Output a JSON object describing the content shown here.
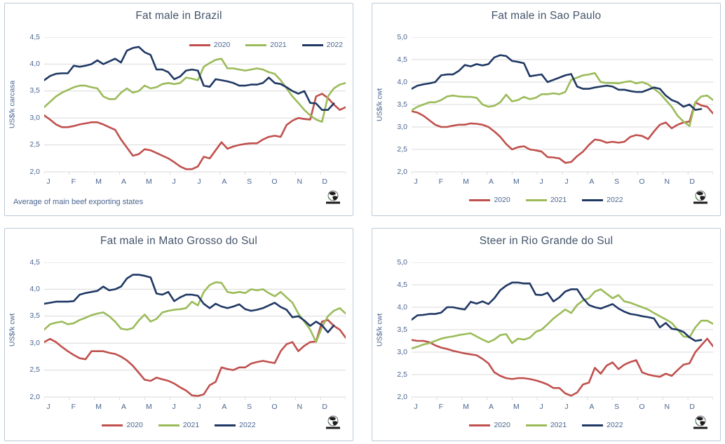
{
  "colors": {
    "title_text": "#44546A",
    "axis_text": "#4a6590",
    "grid": "#d9d9d9",
    "panel_border": "#bccbd8",
    "red_2020": "#C0504D",
    "green_2021": "#9BBB59",
    "navy_2022": "#1F3864"
  },
  "months": [
    "J",
    "F",
    "M",
    "A",
    "M",
    "J",
    "J",
    "A",
    "S",
    "O",
    "N",
    "D"
  ],
  "chart_data": [
    {
      "type": "line",
      "title": "Fat male in Brazil",
      "ylabel": "US$/k carcasa",
      "ylim": [
        2.0,
        4.5
      ],
      "yticks": [
        {
          "label": "4,5",
          "value": 4.5
        },
        {
          "label": "4,0",
          "value": 4.0
        },
        {
          "label": "3,5",
          "value": 3.5
        },
        {
          "label": "3,0",
          "value": 3.0
        },
        {
          "label": "2,5",
          "value": 2.5
        },
        {
          "label": "2,0",
          "value": 2.0
        }
      ],
      "weeks": 52,
      "legend_position": "top-right",
      "footnote": "Average  of main beef exporting states",
      "corner_icon": "globe-logo",
      "series": [
        {
          "name": "2020",
          "color": "#C0504D",
          "values": [
            3.05,
            2.97,
            2.88,
            2.83,
            2.83,
            2.85,
            2.88,
            2.9,
            2.92,
            2.92,
            2.88,
            2.83,
            2.78,
            2.6,
            2.45,
            2.3,
            2.33,
            2.42,
            2.4,
            2.35,
            2.3,
            2.25,
            2.18,
            2.1,
            2.05,
            2.05,
            2.1,
            2.28,
            2.25,
            2.4,
            2.55,
            2.43,
            2.47,
            2.5,
            2.52,
            2.53,
            2.53,
            2.6,
            2.65,
            2.67,
            2.65,
            2.87,
            2.95,
            3.0,
            2.98,
            2.97,
            3.4,
            3.45,
            3.37,
            3.25,
            3.15,
            3.2
          ]
        },
        {
          "name": "2021",
          "color": "#9BBB59",
          "values": [
            3.2,
            3.3,
            3.4,
            3.47,
            3.52,
            3.57,
            3.6,
            3.6,
            3.57,
            3.55,
            3.4,
            3.35,
            3.35,
            3.47,
            3.55,
            3.47,
            3.5,
            3.6,
            3.55,
            3.57,
            3.63,
            3.65,
            3.63,
            3.65,
            3.75,
            3.73,
            3.7,
            3.95,
            4.02,
            4.08,
            4.1,
            3.92,
            3.92,
            3.9,
            3.88,
            3.9,
            3.92,
            3.9,
            3.85,
            3.82,
            3.7,
            3.55,
            3.4,
            3.28,
            3.15,
            3.05,
            2.97,
            2.93,
            3.4,
            3.55,
            3.62,
            3.65
          ]
        },
        {
          "name": "2022",
          "color": "#1F3864",
          "values": [
            3.7,
            3.78,
            3.82,
            3.83,
            3.83,
            3.97,
            3.95,
            3.97,
            4.0,
            4.07,
            4.0,
            4.05,
            4.1,
            4.03,
            4.25,
            4.3,
            4.32,
            4.22,
            4.17,
            3.9,
            3.9,
            3.85,
            3.72,
            3.77,
            3.88,
            3.9,
            3.88,
            3.6,
            3.58,
            3.72,
            3.7,
            3.68,
            3.65,
            3.6,
            3.6,
            3.62,
            3.62,
            3.65,
            3.75,
            3.65,
            3.63,
            3.57,
            3.5,
            3.45,
            3.5,
            3.28,
            3.27,
            3.15,
            3.15,
            3.27
          ]
        }
      ]
    },
    {
      "type": "line",
      "title": "Fat male in Sao Paulo",
      "ylabel": "US$/k cwt",
      "ylim": [
        2.0,
        5.0
      ],
      "yticks": [
        {
          "label": "5,0",
          "value": 5.0
        },
        {
          "label": "4,5",
          "value": 4.5
        },
        {
          "label": "4,0",
          "value": 4.0
        },
        {
          "label": "3,5",
          "value": 3.5
        },
        {
          "label": "3,0",
          "value": 3.0
        },
        {
          "label": "2,5",
          "value": 2.5
        },
        {
          "label": "2,0",
          "value": 2.0
        }
      ],
      "weeks": 52,
      "legend_position": "bottom-center",
      "footnote": "",
      "corner_icon": "globe-logo",
      "series": [
        {
          "name": "2020",
          "color": "#C0504D",
          "values": [
            3.35,
            3.32,
            3.25,
            3.15,
            3.05,
            3.0,
            3.0,
            3.03,
            3.05,
            3.05,
            3.08,
            3.07,
            3.05,
            3.0,
            2.9,
            2.78,
            2.62,
            2.5,
            2.55,
            2.57,
            2.5,
            2.48,
            2.45,
            2.33,
            2.32,
            2.3,
            2.2,
            2.22,
            2.35,
            2.45,
            2.6,
            2.72,
            2.7,
            2.65,
            2.67,
            2.65,
            2.67,
            2.78,
            2.82,
            2.8,
            2.73,
            2.9,
            3.05,
            3.1,
            2.97,
            3.05,
            3.1,
            3.12,
            3.55,
            3.48,
            3.45,
            3.3
          ]
        },
        {
          "name": "2021",
          "color": "#9BBB59",
          "values": [
            3.37,
            3.45,
            3.5,
            3.55,
            3.55,
            3.6,
            3.68,
            3.7,
            3.68,
            3.67,
            3.67,
            3.65,
            3.5,
            3.45,
            3.47,
            3.55,
            3.72,
            3.57,
            3.6,
            3.67,
            3.62,
            3.65,
            3.73,
            3.73,
            3.75,
            3.73,
            3.78,
            4.05,
            4.1,
            4.15,
            4.17,
            4.2,
            4.0,
            3.98,
            3.98,
            3.97,
            4.0,
            4.02,
            3.97,
            4.0,
            3.95,
            3.85,
            3.75,
            3.6,
            3.45,
            3.25,
            3.12,
            3.02,
            3.55,
            3.68,
            3.7,
            3.6
          ]
        },
        {
          "name": "2022",
          "color": "#1F3864",
          "values": [
            3.85,
            3.92,
            3.95,
            3.97,
            4.0,
            4.15,
            4.17,
            4.17,
            4.25,
            4.38,
            4.35,
            4.4,
            4.37,
            4.4,
            4.55,
            4.6,
            4.58,
            4.47,
            4.45,
            4.42,
            4.13,
            4.15,
            4.17,
            4.0,
            4.05,
            4.1,
            4.15,
            4.18,
            3.9,
            3.85,
            3.85,
            3.88,
            3.9,
            3.92,
            3.9,
            3.83,
            3.83,
            3.8,
            3.78,
            3.78,
            3.83,
            3.88,
            3.85,
            3.7,
            3.6,
            3.55,
            3.45,
            3.5,
            3.38,
            3.4
          ]
        }
      ]
    },
    {
      "type": "line",
      "title": "Fat male in Mato Grosso do Sul",
      "ylabel": "US$/k cwt",
      "ylim": [
        2.0,
        4.5
      ],
      "yticks": [
        {
          "label": "4,5",
          "value": 4.5
        },
        {
          "label": "4,0",
          "value": 4.0
        },
        {
          "label": "3,5",
          "value": 3.5
        },
        {
          "label": "3,0",
          "value": 3.0
        },
        {
          "label": "2,5",
          "value": 2.5
        },
        {
          "label": "2,0",
          "value": 2.0
        }
      ],
      "weeks": 52,
      "legend_position": "bottom-center",
      "footnote": "",
      "corner_icon": "globe-logo",
      "series": [
        {
          "name": "2020",
          "color": "#C0504D",
          "values": [
            3.02,
            3.08,
            3.02,
            2.93,
            2.85,
            2.78,
            2.72,
            2.7,
            2.85,
            2.85,
            2.85,
            2.82,
            2.8,
            2.75,
            2.68,
            2.58,
            2.45,
            2.32,
            2.3,
            2.36,
            2.33,
            2.3,
            2.25,
            2.18,
            2.12,
            2.03,
            2.02,
            2.05,
            2.22,
            2.28,
            2.55,
            2.52,
            2.5,
            2.55,
            2.55,
            2.62,
            2.65,
            2.67,
            2.65,
            2.63,
            2.85,
            2.98,
            3.02,
            2.85,
            2.95,
            3.02,
            3.03,
            3.4,
            3.43,
            3.32,
            3.25,
            3.1
          ]
        },
        {
          "name": "2021",
          "color": "#9BBB59",
          "values": [
            3.25,
            3.35,
            3.38,
            3.4,
            3.35,
            3.37,
            3.43,
            3.47,
            3.52,
            3.55,
            3.57,
            3.5,
            3.4,
            3.27,
            3.25,
            3.28,
            3.42,
            3.53,
            3.4,
            3.45,
            3.57,
            3.6,
            3.62,
            3.63,
            3.65,
            3.77,
            3.7,
            3.95,
            4.08,
            4.13,
            4.12,
            3.95,
            3.93,
            3.95,
            3.93,
            4.0,
            3.98,
            4.0,
            3.93,
            3.87,
            3.95,
            3.85,
            3.75,
            3.55,
            3.4,
            3.25,
            3.02,
            3.3,
            3.5,
            3.6,
            3.65,
            3.55
          ]
        },
        {
          "name": "2022",
          "color": "#1F3864",
          "values": [
            3.73,
            3.75,
            3.77,
            3.77,
            3.77,
            3.78,
            3.9,
            3.93,
            3.95,
            3.97,
            4.05,
            3.98,
            4.0,
            4.05,
            4.2,
            4.27,
            4.27,
            4.25,
            4.22,
            3.92,
            3.9,
            3.95,
            3.78,
            3.85,
            3.9,
            3.9,
            3.88,
            3.73,
            3.65,
            3.73,
            3.68,
            3.65,
            3.68,
            3.72,
            3.63,
            3.6,
            3.62,
            3.65,
            3.7,
            3.75,
            3.67,
            3.62,
            3.48,
            3.5,
            3.42,
            3.32,
            3.4,
            3.33,
            3.2,
            3.33
          ]
        }
      ]
    },
    {
      "type": "line",
      "title": "Steer  in Rio Grande do Sul",
      "ylabel": "US$/k cwt",
      "ylim": [
        2.0,
        5.0
      ],
      "yticks": [
        {
          "label": "5,0",
          "value": 5.0
        },
        {
          "label": "4,5",
          "value": 4.5
        },
        {
          "label": "4,0",
          "value": 4.0
        },
        {
          "label": "3,5",
          "value": 3.5
        },
        {
          "label": "3,0",
          "value": 3.0
        },
        {
          "label": "2,5",
          "value": 2.5
        },
        {
          "label": "2,0",
          "value": 2.0
        }
      ],
      "weeks": 52,
      "legend_position": "bottom-center",
      "footnote": "",
      "corner_icon": "globe-logo",
      "series": [
        {
          "name": "2020",
          "color": "#C0504D",
          "values": [
            3.27,
            3.25,
            3.25,
            3.22,
            3.15,
            3.1,
            3.07,
            3.03,
            3.0,
            2.97,
            2.95,
            2.93,
            2.85,
            2.75,
            2.55,
            2.47,
            2.42,
            2.4,
            2.42,
            2.42,
            2.4,
            2.37,
            2.33,
            2.28,
            2.2,
            2.2,
            2.08,
            2.03,
            2.1,
            2.28,
            2.32,
            2.65,
            2.52,
            2.7,
            2.77,
            2.62,
            2.72,
            2.78,
            2.82,
            2.55,
            2.5,
            2.47,
            2.45,
            2.52,
            2.47,
            2.6,
            2.72,
            2.75,
            3.0,
            3.15,
            3.3,
            3.13
          ]
        },
        {
          "name": "2021",
          "color": "#9BBB59",
          "values": [
            3.08,
            3.12,
            3.17,
            3.2,
            3.25,
            3.3,
            3.33,
            3.35,
            3.38,
            3.4,
            3.42,
            3.35,
            3.28,
            3.22,
            3.28,
            3.38,
            3.4,
            3.2,
            3.3,
            3.28,
            3.32,
            3.45,
            3.5,
            3.62,
            3.75,
            3.85,
            3.95,
            3.87,
            4.05,
            4.15,
            4.2,
            4.35,
            4.4,
            4.3,
            4.2,
            4.27,
            4.13,
            4.1,
            4.05,
            4.0,
            3.95,
            3.87,
            3.8,
            3.73,
            3.65,
            3.5,
            3.35,
            3.33,
            3.55,
            3.7,
            3.7,
            3.63
          ]
        },
        {
          "name": "2022",
          "color": "#1F3864",
          "values": [
            3.72,
            3.82,
            3.83,
            3.85,
            3.85,
            3.88,
            4.0,
            4.0,
            3.97,
            3.95,
            4.12,
            4.08,
            4.13,
            4.07,
            4.2,
            4.38,
            4.48,
            4.55,
            4.55,
            4.53,
            4.53,
            4.28,
            4.27,
            4.32,
            4.13,
            4.22,
            4.35,
            4.4,
            4.4,
            4.2,
            4.05,
            4.0,
            3.97,
            4.02,
            4.07,
            3.97,
            3.9,
            3.85,
            3.83,
            3.8,
            3.78,
            3.75,
            3.55,
            3.65,
            3.52,
            3.5,
            3.45,
            3.33,
            3.25,
            3.27
          ]
        }
      ]
    }
  ]
}
